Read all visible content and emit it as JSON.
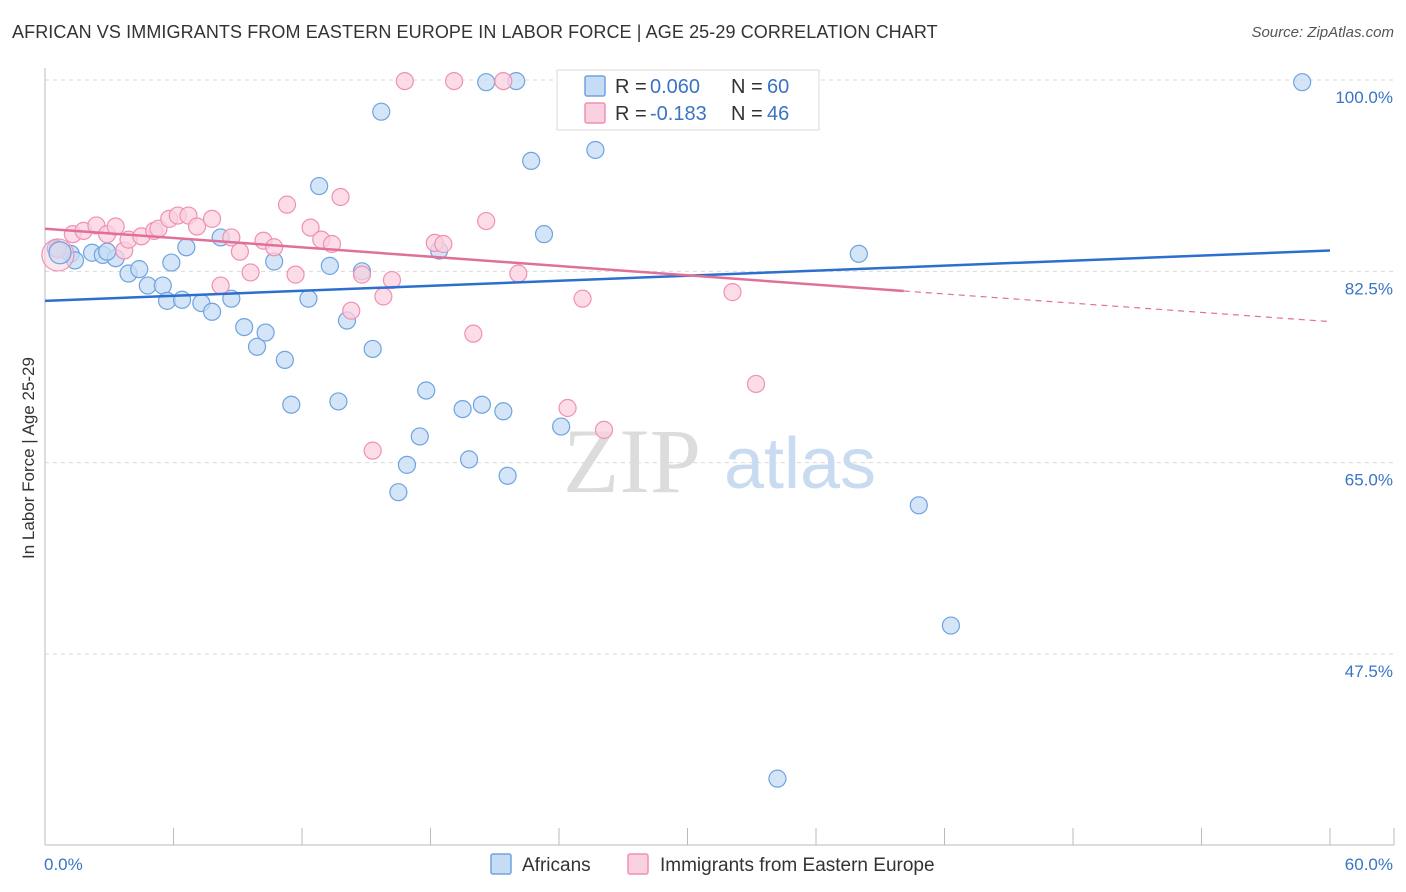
{
  "header": {
    "title": "AFRICAN VS IMMIGRANTS FROM EASTERN EUROPE IN LABOR FORCE | AGE 25-29 CORRELATION CHART",
    "source": "Source: ZipAtlas.com"
  },
  "colors": {
    "blue": "#6fa3e0",
    "blue_fill": "#c6dcf5",
    "blue_line": "#2c6fcf",
    "pink": "#f090b4",
    "pink_fill": "#f9d0df",
    "pink_line": "#e0709a",
    "tick_text": "#3a74c4",
    "grid": "#d9d9d9"
  },
  "legend": {
    "r_label": "R = ",
    "n_label": "N = ",
    "series": [
      {
        "r": "0.060",
        "n": "60"
      },
      {
        "r": "-0.183",
        "n": "46"
      }
    ]
  },
  "watermark": {
    "zip": "ZIP",
    "atlas": "atlas"
  },
  "chart_data": {
    "type": "scatter",
    "title": "AFRICAN VS IMMIGRANTS FROM EASTERN EUROPE IN LABOR FORCE | AGE 25-29 CORRELATION CHART",
    "xlabel": "",
    "ylabel": "In Labor Force | Age 25-29",
    "xlim": [
      0,
      60
    ],
    "ylim": [
      30,
      102
    ],
    "x_tick_labels": [
      "0.0%",
      "60.0%"
    ],
    "y_ticks": [
      47.5,
      65.0,
      82.5,
      100.0
    ],
    "y_tick_labels": [
      "47.5%",
      "65.0%",
      "82.5%",
      "100.0%"
    ],
    "grid": true,
    "series": [
      {
        "name": "Africans",
        "color": "#6fa3e0",
        "r": 0.06,
        "n": 60,
        "trend": {
          "x": [
            0,
            60
          ],
          "y": [
            79.8,
            84.4
          ]
        },
        "points": [
          [
            0.5,
            84.6
          ],
          [
            1.2,
            84.1
          ],
          [
            1.4,
            83.5
          ],
          [
            2.2,
            84.2
          ],
          [
            2.7,
            84.0
          ],
          [
            3.3,
            83.7
          ],
          [
            3.9,
            82.3
          ],
          [
            4.4,
            82.7
          ],
          [
            4.8,
            81.2
          ],
          [
            5.5,
            81.2
          ],
          [
            5.9,
            83.3
          ],
          [
            5.7,
            79.8
          ],
          [
            6.4,
            79.9
          ],
          [
            6.6,
            84.7
          ],
          [
            7.3,
            79.6
          ],
          [
            7.8,
            78.8
          ],
          [
            8.2,
            85.6
          ],
          [
            8.7,
            80.0
          ],
          [
            9.3,
            77.4
          ],
          [
            9.9,
            75.6
          ],
          [
            10.3,
            76.9
          ],
          [
            10.7,
            83.4
          ],
          [
            11.2,
            74.4
          ],
          [
            11.5,
            70.3
          ],
          [
            12.3,
            80.0
          ],
          [
            12.8,
            90.3
          ],
          [
            13.3,
            83.0
          ],
          [
            13.7,
            70.6
          ],
          [
            14.1,
            78.0
          ],
          [
            14.8,
            82.5
          ],
          [
            15.3,
            75.4
          ],
          [
            15.7,
            97.1
          ],
          [
            16.5,
            62.3
          ],
          [
            16.9,
            64.8
          ],
          [
            17.5,
            67.4
          ],
          [
            17.8,
            71.6
          ],
          [
            18.4,
            84.4
          ],
          [
            19.5,
            69.9
          ],
          [
            19.8,
            65.3
          ],
          [
            20.4,
            70.3
          ],
          [
            20.6,
            99.8
          ],
          [
            21.4,
            69.7
          ],
          [
            21.6,
            63.8
          ],
          [
            22.0,
            99.9
          ],
          [
            22.7,
            92.6
          ],
          [
            23.3,
            85.9
          ],
          [
            24.1,
            68.3
          ],
          [
            25.7,
            93.6
          ],
          [
            27.3,
            99.9
          ],
          [
            28.0,
            99.9
          ],
          [
            29.3,
            99.9
          ],
          [
            30.3,
            99.9
          ],
          [
            32.3,
            99.9
          ],
          [
            33.7,
            99.9
          ],
          [
            34.2,
            36.1
          ],
          [
            38.0,
            84.1
          ],
          [
            40.8,
            61.1
          ],
          [
            42.3,
            50.1
          ],
          [
            58.7,
            99.8
          ],
          [
            2.9,
            84.3
          ]
        ]
      },
      {
        "name": "Immigrants from Eastern Europe",
        "color": "#f090b4",
        "r": -0.183,
        "n": 46,
        "trend": {
          "x": [
            0,
            40.1
          ],
          "y": [
            86.4,
            80.7
          ]
        },
        "trend_dashed": {
          "x": [
            40.1,
            60
          ],
          "y": [
            80.7,
            77.9
          ]
        },
        "points": [
          [
            0.6,
            84.5
          ],
          [
            1.3,
            85.9
          ],
          [
            1.8,
            86.2
          ],
          [
            2.4,
            86.7
          ],
          [
            2.9,
            85.9
          ],
          [
            3.3,
            86.6
          ],
          [
            3.7,
            84.4
          ],
          [
            3.9,
            85.4
          ],
          [
            4.5,
            85.7
          ],
          [
            5.1,
            86.2
          ],
          [
            5.3,
            86.4
          ],
          [
            5.8,
            87.3
          ],
          [
            6.2,
            87.6
          ],
          [
            6.7,
            87.6
          ],
          [
            7.1,
            86.6
          ],
          [
            7.8,
            87.3
          ],
          [
            8.2,
            81.2
          ],
          [
            8.7,
            85.6
          ],
          [
            9.1,
            84.3
          ],
          [
            9.6,
            82.4
          ],
          [
            10.2,
            85.3
          ],
          [
            10.7,
            84.7
          ],
          [
            11.3,
            88.6
          ],
          [
            11.7,
            82.2
          ],
          [
            12.4,
            86.5
          ],
          [
            12.9,
            85.4
          ],
          [
            13.4,
            85.0
          ],
          [
            13.8,
            89.3
          ],
          [
            14.3,
            78.9
          ],
          [
            14.8,
            82.2
          ],
          [
            15.3,
            66.1
          ],
          [
            15.8,
            80.2
          ],
          [
            16.2,
            81.7
          ],
          [
            16.8,
            99.9
          ],
          [
            18.2,
            85.1
          ],
          [
            18.6,
            85.0
          ],
          [
            19.1,
            99.9
          ],
          [
            20.0,
            76.8
          ],
          [
            20.6,
            87.1
          ],
          [
            21.4,
            99.9
          ],
          [
            22.1,
            82.3
          ],
          [
            24.4,
            70.0
          ],
          [
            25.1,
            80.0
          ],
          [
            26.1,
            68.0
          ],
          [
            32.1,
            80.6
          ],
          [
            33.2,
            72.2
          ]
        ]
      }
    ]
  },
  "bottom_legend": [
    "Africans",
    "Immigrants from Eastern Europe"
  ]
}
